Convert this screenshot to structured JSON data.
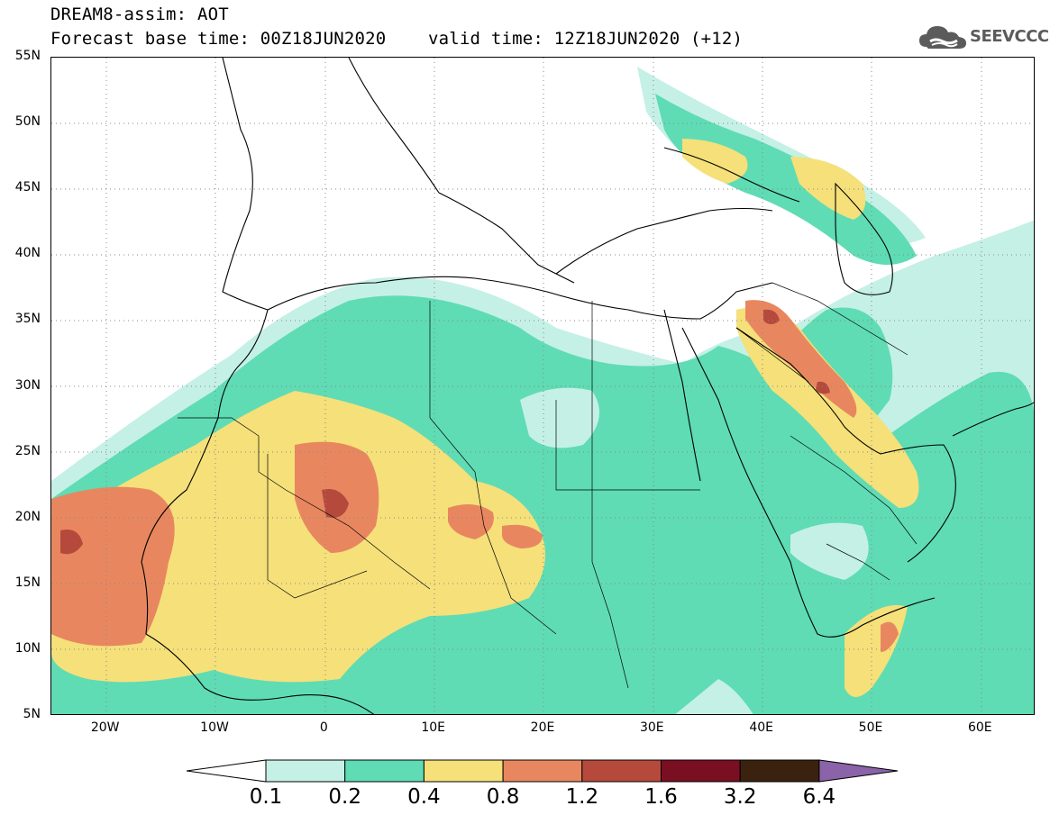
{
  "header": {
    "title_line1": "DREAM8-assim: AOT",
    "title_line2": "Forecast base time: 00Z18JUN2020    valid time: 12Z18JUN2020 (+12)"
  },
  "logo": {
    "text": "SEEVCCC",
    "icon": "cloud-icon",
    "color": "#5b5b5b"
  },
  "map": {
    "variable": "AOT",
    "lon_range": [
      -25,
      65
    ],
    "lat_range": [
      5,
      55
    ],
    "lat_ticks": [
      {
        "value": 55,
        "label": "55N"
      },
      {
        "value": 50,
        "label": "50N"
      },
      {
        "value": 45,
        "label": "45N"
      },
      {
        "value": 40,
        "label": "40N"
      },
      {
        "value": 35,
        "label": "35N"
      },
      {
        "value": 30,
        "label": "30N"
      },
      {
        "value": 25,
        "label": "25N"
      },
      {
        "value": 20,
        "label": "20N"
      },
      {
        "value": 15,
        "label": "15N"
      },
      {
        "value": 10,
        "label": "10N"
      },
      {
        "value": 5,
        "label": "5N"
      }
    ],
    "lon_ticks": [
      {
        "value": -20,
        "label": "20W"
      },
      {
        "value": -10,
        "label": "10W"
      },
      {
        "value": 0,
        "label": "0"
      },
      {
        "value": 10,
        "label": "10E"
      },
      {
        "value": 20,
        "label": "20E"
      },
      {
        "value": 30,
        "label": "30E"
      },
      {
        "value": 40,
        "label": "40E"
      },
      {
        "value": 50,
        "label": "50E"
      },
      {
        "value": 60,
        "label": "60E"
      }
    ],
    "grid": "dotted"
  },
  "colorbar": {
    "levels": [
      "0.1",
      "0.2",
      "0.4",
      "0.8",
      "1.2",
      "1.6",
      "3.2",
      "6.4"
    ],
    "colors": {
      "below": "#ffffff",
      "bins": [
        "#c5f0e6",
        "#5fdcb4",
        "#f5e07a",
        "#e8875f",
        "#b54a3c",
        "#7a0f22",
        "#3a220f"
      ],
      "above": "#8a63a8"
    }
  }
}
